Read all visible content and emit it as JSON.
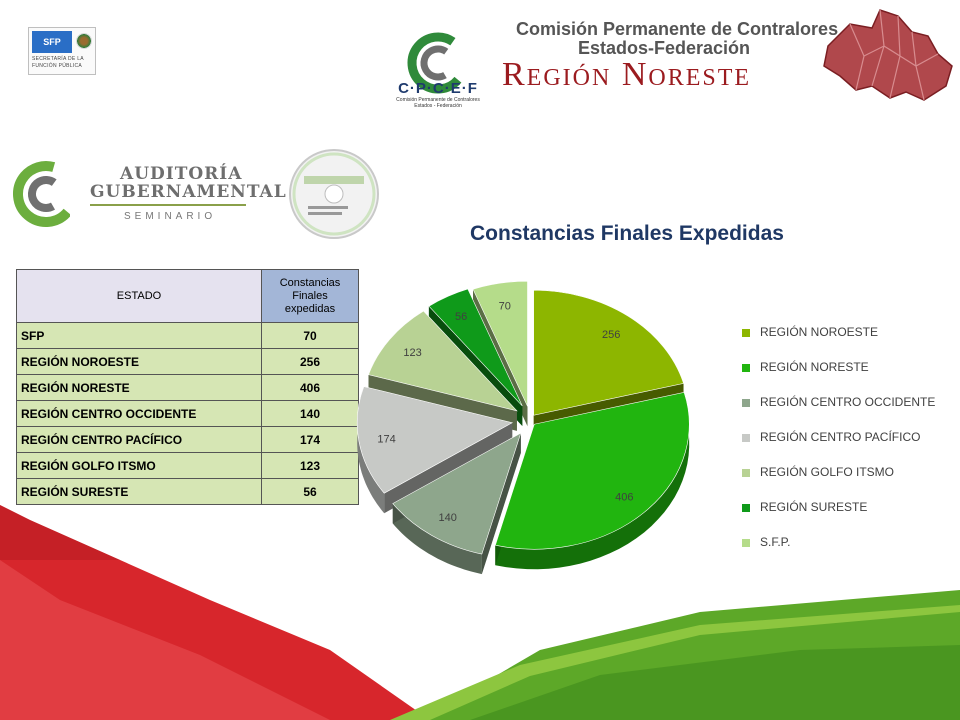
{
  "header": {
    "sfp_abbr": "SFP",
    "sfp_subtitle_1": "SECRETARÍA DE LA",
    "sfp_subtitle_2": "FUNCIÓN PÚBLICA",
    "cpcef_acronym": "C·P·C·E·F",
    "cpcef_small_1": "Comisión Permanente de Contralores",
    "cpcef_small_2": "Estados - Federación",
    "commission_line1": "Comisión Permanente de Contralores",
    "commission_line2": "Estados-Federación",
    "region_title": "Región Noreste"
  },
  "seminar_logo": {
    "line1": "AUDITORÍA",
    "line2": "GUBERNAMENTAL",
    "line3": "SEMINARIO"
  },
  "table": {
    "col_estado": "ESTADO",
    "col_constancias": "Constancias Finales expedidas",
    "rows": [
      {
        "name": "SFP",
        "value": "70"
      },
      {
        "name": "REGIÓN NOROESTE",
        "value": "256"
      },
      {
        "name": "REGIÓN NORESTE",
        "value": "406"
      },
      {
        "name": "REGIÓN CENTRO OCCIDENTE",
        "value": "140"
      },
      {
        "name": "REGIÓN CENTRO PACÍFICO",
        "value": "174"
      },
      {
        "name": "REGIÓN GOLFO ITSMO",
        "value": "123"
      },
      {
        "name": "REGIÓN SURESTE",
        "value": "56"
      }
    ]
  },
  "chart_data": {
    "type": "pie",
    "title": "Constancias Finales Expedidas",
    "style": "3d-exploded",
    "legend_position": "right",
    "categories": [
      "REGIÓN NOROESTE",
      "REGIÓN NORESTE",
      "REGIÓN CENTRO OCCIDENTE",
      "REGIÓN CENTRO PACÍFICO",
      "REGIÓN GOLFO ITSMO",
      "REGIÓN SURESTE",
      "S.F.P."
    ],
    "values": [
      256,
      406,
      140,
      174,
      123,
      56,
      70
    ],
    "colors": [
      "#8db600",
      "#21b50f",
      "#8ea68c",
      "#c7c9c6",
      "#b8d294",
      "#0f9a1a",
      "#b5dc8a"
    ],
    "data_labels": [
      "256",
      "406",
      "140",
      "174",
      "123",
      "56",
      "70"
    ]
  }
}
